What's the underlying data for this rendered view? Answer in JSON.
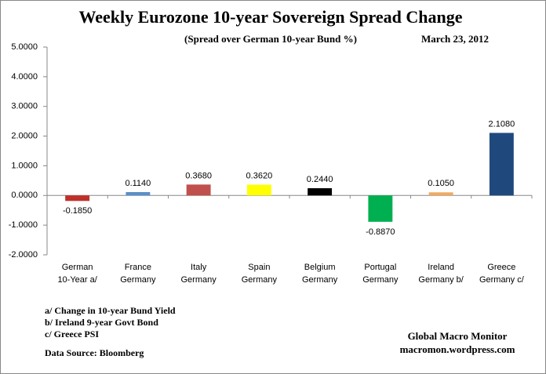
{
  "chart_data": {
    "type": "bar",
    "title": "Weekly Eurozone 10-year Sovereign Spread Change",
    "subtitle": "(Spread over German 10-year Bund  %)",
    "date": "March 23,  2012",
    "categories": [
      "German\n10-Year a/",
      "France\nGermany",
      "Italy\nGermany",
      "Spain\nGermany",
      "Belgium\nGermany",
      "Portugal\nGermany",
      "Ireland\nGermany b/",
      "Greece\nGermany c/"
    ],
    "values": [
      -0.185,
      0.114,
      0.368,
      0.362,
      0.244,
      -0.887,
      0.105,
      2.108
    ],
    "value_labels": [
      "-0.1850",
      "0.1140",
      "0.3680",
      "0.3620",
      "0.2440",
      "-0.8870",
      "0.1050",
      "2.1080"
    ],
    "colors": [
      "#c0302a",
      "#5b8fc9",
      "#c0504d",
      "#ffff00",
      "#000000",
      "#00b050",
      "#f0a860",
      "#1f497d"
    ],
    "ylim": [
      -2,
      5
    ],
    "yticks": [
      {
        "value": -2,
        "label": "-2.0000"
      },
      {
        "value": -1,
        "label": "-1.0000"
      },
      {
        "value": 0,
        "label": "0.0000"
      },
      {
        "value": 1,
        "label": "1.0000"
      },
      {
        "value": 2,
        "label": "2.0000"
      },
      {
        "value": 3,
        "label": "3.0000"
      },
      {
        "value": 4,
        "label": "4.0000"
      },
      {
        "value": 5,
        "label": "5.0000"
      }
    ],
    "notes": [
      "a/ Change in 10-year Bund Yield",
      "b/ Ireland 9-year Govt Bond",
      "c/ Greece PSI"
    ],
    "source": "Data Source:  Bloomberg",
    "credit": [
      "Global Macro Monitor",
      "macromon.wordpress.com"
    ]
  }
}
